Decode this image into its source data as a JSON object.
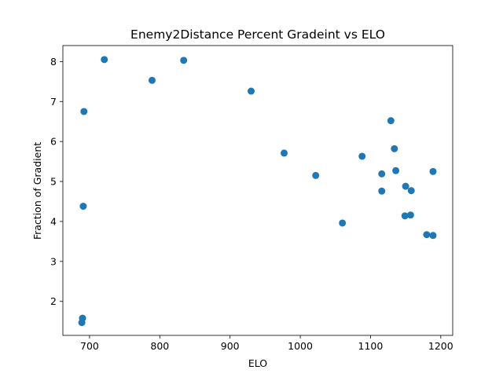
{
  "chart_data": {
    "type": "scatter",
    "title": "Enemy2Distance Percent Gradeint vs ELO",
    "xlabel": "ELO",
    "ylabel": "Fraction of Gradient",
    "xlim": [
      662,
      1217
    ],
    "ylim": [
      1.15,
      8.4
    ],
    "xticks": [
      700,
      800,
      900,
      1000,
      1100,
      1200
    ],
    "yticks": [
      2,
      3,
      4,
      5,
      6,
      7,
      8
    ],
    "grid": false,
    "marker_color": "#1f77b4",
    "series": [
      {
        "points": [
          {
            "x": 689,
            "y": 1.47
          },
          {
            "x": 690,
            "y": 1.58
          },
          {
            "x": 691,
            "y": 4.38
          },
          {
            "x": 692,
            "y": 6.75
          },
          {
            "x": 721,
            "y": 8.05
          },
          {
            "x": 789,
            "y": 7.53
          },
          {
            "x": 834,
            "y": 8.03
          },
          {
            "x": 930,
            "y": 7.26
          },
          {
            "x": 977,
            "y": 5.71
          },
          {
            "x": 1022,
            "y": 5.15
          },
          {
            "x": 1060,
            "y": 3.96
          },
          {
            "x": 1088,
            "y": 5.63
          },
          {
            "x": 1116,
            "y": 5.19
          },
          {
            "x": 1116,
            "y": 4.76
          },
          {
            "x": 1129,
            "y": 6.52
          },
          {
            "x": 1134,
            "y": 5.82
          },
          {
            "x": 1136,
            "y": 5.27
          },
          {
            "x": 1149,
            "y": 4.14
          },
          {
            "x": 1150,
            "y": 4.88
          },
          {
            "x": 1157,
            "y": 4.16
          },
          {
            "x": 1158,
            "y": 4.77
          },
          {
            "x": 1180,
            "y": 3.67
          },
          {
            "x": 1189,
            "y": 5.25
          },
          {
            "x": 1189,
            "y": 3.65
          }
        ]
      }
    ]
  }
}
